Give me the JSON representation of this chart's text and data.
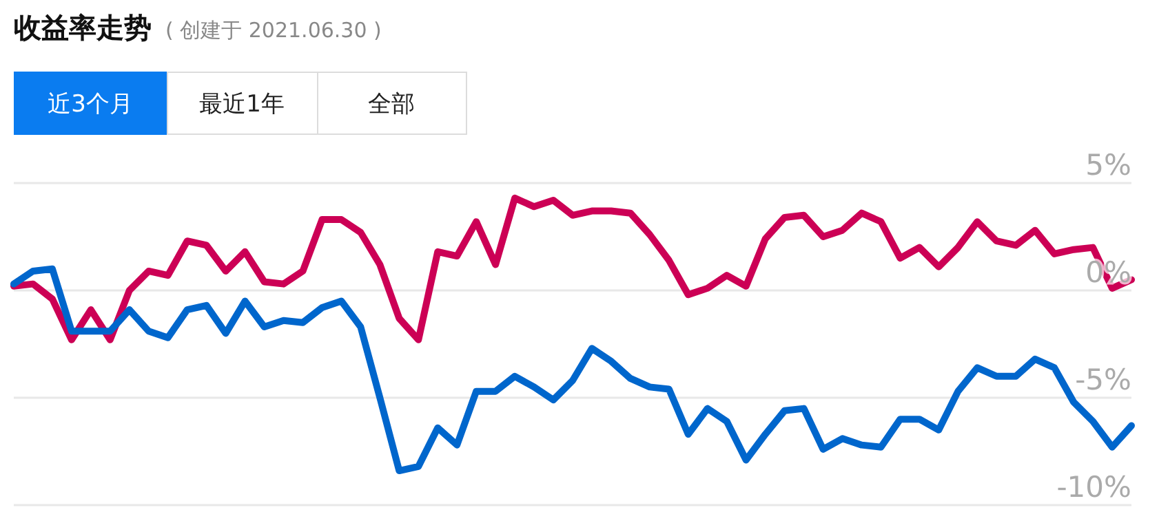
{
  "chart_data": {
    "type": "line",
    "title": "收益率走势",
    "subtitle": "( 创建于 2021.06.30 )",
    "annotations": [
      "近3个月",
      "最近1年",
      "全部"
    ],
    "categories": [
      null,
      null,
      null,
      null,
      null,
      null,
      null,
      null,
      null,
      null,
      null,
      null,
      null,
      null,
      null,
      null,
      null,
      null,
      null,
      null,
      null,
      null,
      null,
      null,
      null,
      null,
      null,
      null,
      null,
      null,
      null,
      null,
      null,
      null,
      null,
      null,
      null,
      null,
      null,
      null,
      null,
      null,
      null,
      null,
      null,
      null,
      null,
      null,
      null,
      null,
      null,
      null,
      null,
      null,
      null,
      null,
      null,
      null,
      null
    ],
    "series": [
      {
        "color": "#cc0055",
        "values": [
          0.2,
          0.3,
          -0.4,
          -2.3,
          -0.9,
          -2.3,
          0,
          0.9,
          0.7,
          2.3,
          2.1,
          0.9,
          1.8,
          0.4,
          0.3,
          0.9,
          3.3,
          3.3,
          2.7,
          1.2,
          -1.3,
          -2.3,
          1.8,
          1.6,
          3.2,
          1.2,
          4.3,
          3.9,
          4.2,
          3.5,
          3.7,
          3.7,
          3.6,
          2.6,
          1.4,
          -0.2,
          0.1,
          0.7,
          0.2,
          2.4,
          3.4,
          3.5,
          2.5,
          2.8,
          3.6,
          3.2,
          1.5,
          2.0,
          1.1,
          2.0,
          3.2,
          2.3,
          2.1,
          2.8,
          1.7,
          1.9,
          2.0,
          0.1,
          0.5
        ]
      },
      {
        "color": "#0066cc",
        "values": [
          0.3,
          0.9,
          1.0,
          -1.9,
          -1.9,
          -1.9,
          -0.9,
          -1.9,
          -2.2,
          -0.9,
          -0.7,
          -2.0,
          -0.5,
          -1.7,
          -1.4,
          -1.5,
          -0.8,
          -0.5,
          -1.7,
          -5.0,
          -8.4,
          -8.2,
          -6.4,
          -7.2,
          -4.7,
          -4.7,
          -4.0,
          -4.5,
          -5.1,
          -4.2,
          -2.7,
          -3.3,
          -4.1,
          -4.5,
          -4.6,
          -6.7,
          -5.5,
          -6.1,
          -7.9,
          -6.7,
          -5.6,
          -5.5,
          -7.4,
          -6.9,
          -7.2,
          -7.3,
          -6.0,
          -6.0,
          -6.5,
          -4.7,
          -3.6,
          -4.0,
          -4.0,
          -3.2,
          -3.6,
          -5.2,
          -6.1,
          -7.3,
          -6.3
        ]
      }
    ],
    "ylim": [
      -10,
      5
    ],
    "yticks": [
      {
        "value": 5,
        "label": "5%"
      },
      {
        "value": 0,
        "label": "0%"
      },
      {
        "value": -5,
        "label": "-5%"
      },
      {
        "value": -10,
        "label": "-10%"
      }
    ],
    "grid": "y",
    "marker": "none",
    "line_style": "solid"
  }
}
